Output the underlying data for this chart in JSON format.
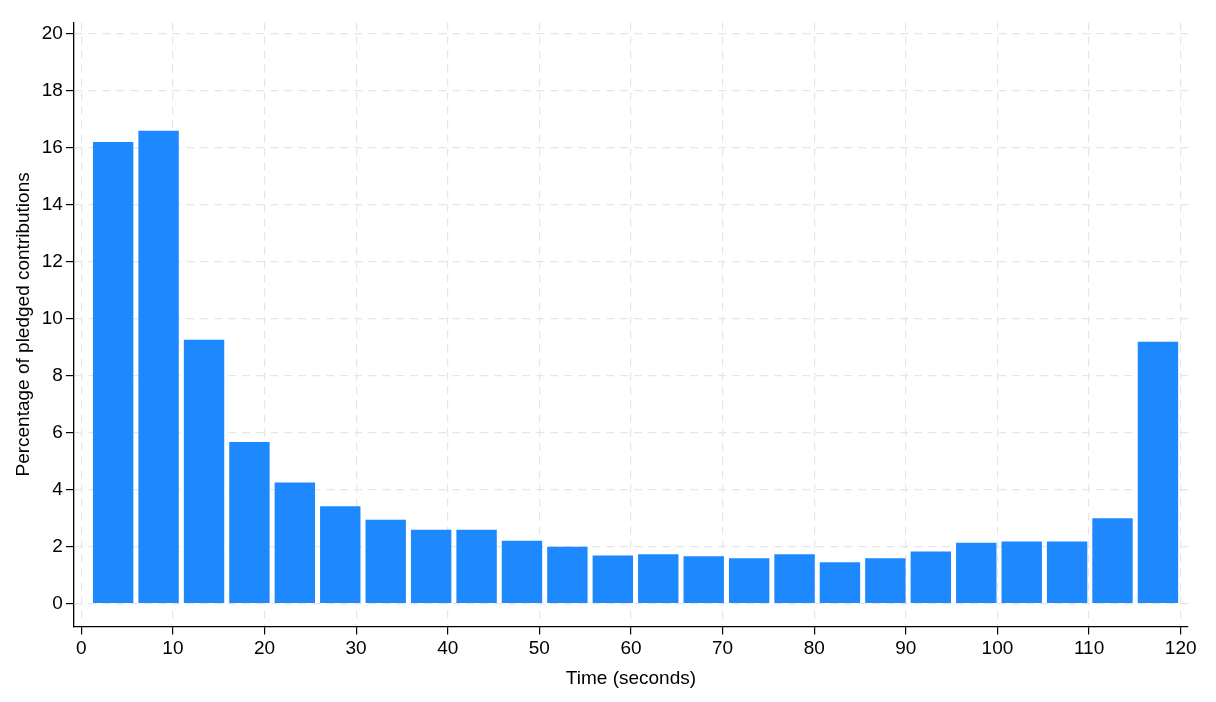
{
  "chart_data": {
    "type": "histogram",
    "xlabel": "Time (seconds)",
    "ylabel": "Percentage of pledged contributions",
    "bins": [
      1,
      5.96,
      10.92,
      15.88,
      20.83,
      25.79,
      30.75,
      35.71,
      40.67,
      45.63,
      50.58,
      55.54,
      60.5,
      65.46,
      70.42,
      75.38,
      80.33,
      85.29,
      90.25,
      95.21,
      100.17,
      105.13,
      110.08,
      115.04,
      120
    ],
    "values": [
      16.2,
      16.6,
      9.26,
      5.67,
      4.25,
      3.42,
      2.94,
      2.59,
      2.59,
      2.21,
      2.0,
      1.69,
      1.73,
      1.66,
      1.59,
      1.73,
      1.45,
      1.59,
      1.83,
      2.14,
      2.18,
      2.18,
      3.0,
      9.19
    ],
    "color": "#1e88ff",
    "xlim": [
      -0.8,
      120.8
    ],
    "xticks": [
      0,
      10,
      20,
      30,
      40,
      50,
      60,
      70,
      80,
      90,
      100,
      110,
      120
    ],
    "ylim": [
      -0.8,
      20.4
    ],
    "yticks": [
      0,
      2,
      4,
      6,
      8,
      10,
      12,
      14,
      16,
      18,
      20
    ],
    "grid": true,
    "legend": false
  }
}
